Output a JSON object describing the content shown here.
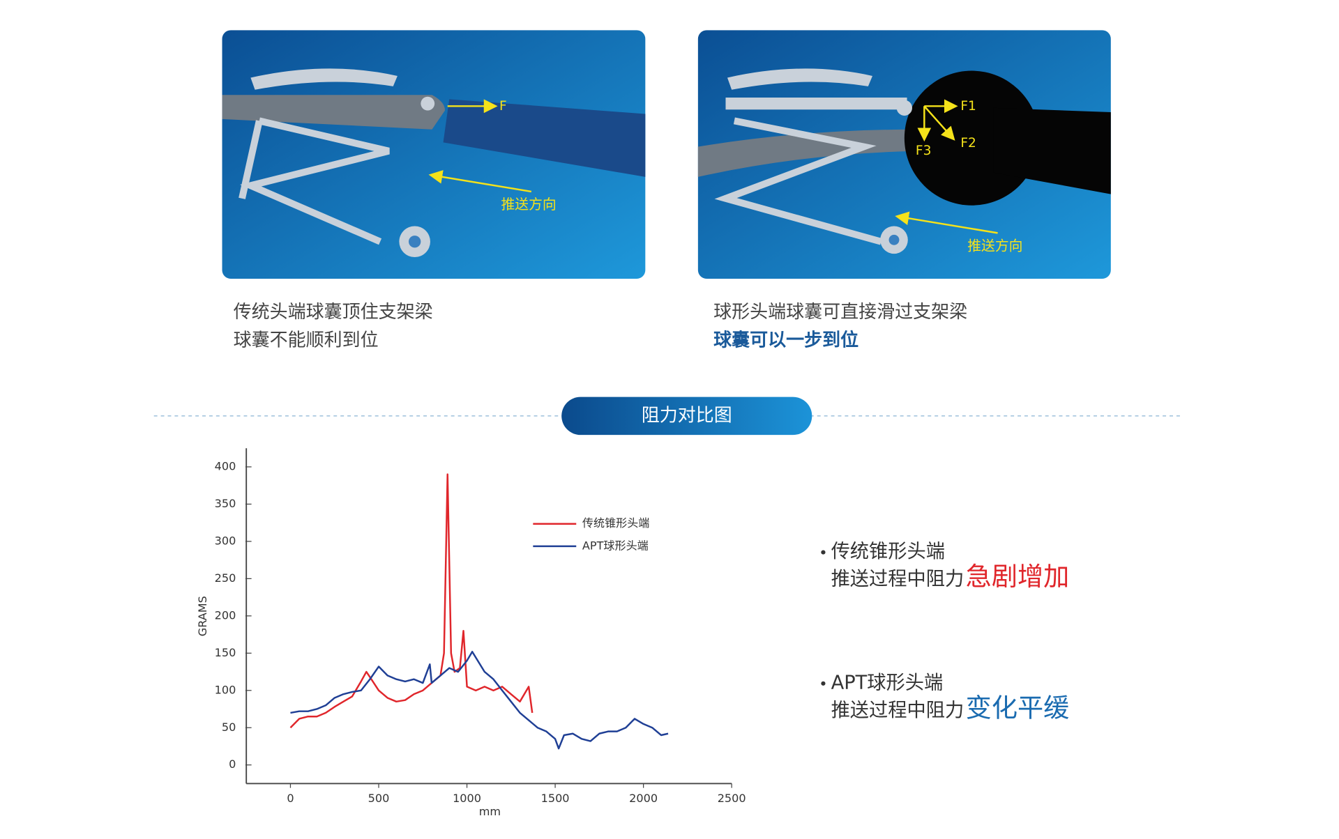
{
  "panels": [
    {
      "label_force": "F",
      "label_direction": "推送方向",
      "caption": [
        "传统头端球囊顶住支架梁",
        "球囊不能顺利到位"
      ]
    },
    {
      "label_forces": [
        "F1",
        "F2",
        "F3"
      ],
      "label_direction": "推送方向",
      "caption": [
        "球形头端球囊可直接滑过支架梁",
        "球囊可以一步到位"
      ]
    }
  ],
  "section_title": "阻力对比图",
  "chart_data": {
    "type": "line",
    "x_label": "mm",
    "y_label": "GRAMS",
    "xlim": [
      -250,
      2500
    ],
    "ylim": [
      -25,
      425
    ],
    "xticks": [
      0,
      500,
      1000,
      1500,
      2000,
      2500
    ],
    "yticks": [
      0,
      50,
      100,
      150,
      200,
      250,
      300,
      350,
      400
    ],
    "series": [
      {
        "name": "传统锥形头端",
        "color": "#e0262b",
        "x": [
          0,
          50,
          100,
          150,
          200,
          250,
          300,
          350,
          400,
          430,
          450,
          500,
          550,
          600,
          650,
          700,
          750,
          800,
          850,
          870,
          890,
          910,
          930,
          960,
          980,
          1000,
          1050,
          1100,
          1150,
          1200,
          1250,
          1300,
          1350,
          1370
        ],
        "values": [
          50,
          62,
          65,
          65,
          70,
          78,
          85,
          92,
          112,
          125,
          118,
          100,
          90,
          85,
          87,
          95,
          100,
          110,
          120,
          150,
          390,
          150,
          125,
          130,
          180,
          105,
          100,
          105,
          100,
          105,
          95,
          85,
          105,
          70
        ]
      },
      {
        "name": "APT球形头端",
        "color": "#1f3f95",
        "x": [
          0,
          50,
          100,
          150,
          200,
          250,
          300,
          350,
          400,
          450,
          500,
          550,
          600,
          650,
          700,
          750,
          790,
          800,
          850,
          900,
          950,
          1000,
          1030,
          1100,
          1150,
          1200,
          1250,
          1300,
          1350,
          1400,
          1450,
          1500,
          1520,
          1550,
          1600,
          1650,
          1700,
          1750,
          1800,
          1850,
          1900,
          1950,
          2000,
          2050,
          2100,
          2140
        ],
        "values": [
          70,
          72,
          72,
          75,
          80,
          90,
          95,
          98,
          100,
          115,
          132,
          120,
          115,
          112,
          115,
          110,
          135,
          110,
          120,
          130,
          125,
          140,
          152,
          125,
          115,
          100,
          85,
          70,
          60,
          50,
          45,
          35,
          22,
          40,
          42,
          35,
          32,
          42,
          45,
          45,
          50,
          62,
          55,
          50,
          40,
          42
        ]
      }
    ]
  },
  "notes": [
    {
      "title": "传统锥形头端",
      "text": "推送过程中阻力",
      "emphasis": "急剧增加",
      "emphasis_color": "#e0262b"
    },
    {
      "title": "APT球形头端",
      "text": "推送过程中阻力",
      "emphasis": "变化平缓",
      "emphasis_color": "#1a6bb0"
    }
  ]
}
